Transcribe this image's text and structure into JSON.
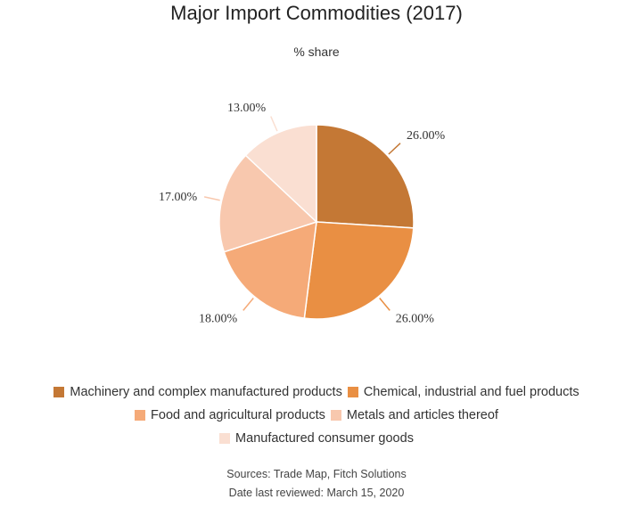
{
  "chart_data": {
    "type": "pie",
    "title": "Major Import Commodities (2017)",
    "subtitle": "% share",
    "slices": [
      {
        "label": "Machinery and complex manufactured products",
        "value": 26.0,
        "display": "26.00%",
        "color": "#c47835"
      },
      {
        "label": "Chemical, industrial and fuel products",
        "value": 26.0,
        "display": "26.00%",
        "color": "#e98f43"
      },
      {
        "label": "Food and agricultural products",
        "value": 18.0,
        "display": "18.00%",
        "color": "#f5aa78"
      },
      {
        "label": "Metals and articles thereof",
        "value": 17.0,
        "display": "17.00%",
        "color": "#f8c8ae"
      },
      {
        "label": "Manufactured consumer goods",
        "value": 13.0,
        "display": "13.00%",
        "color": "#fadfd2"
      }
    ],
    "legend_position": "bottom"
  },
  "footer": {
    "sources": "Sources: Trade Map, Fitch Solutions",
    "reviewed": "Date last reviewed: March 15, 2020"
  }
}
